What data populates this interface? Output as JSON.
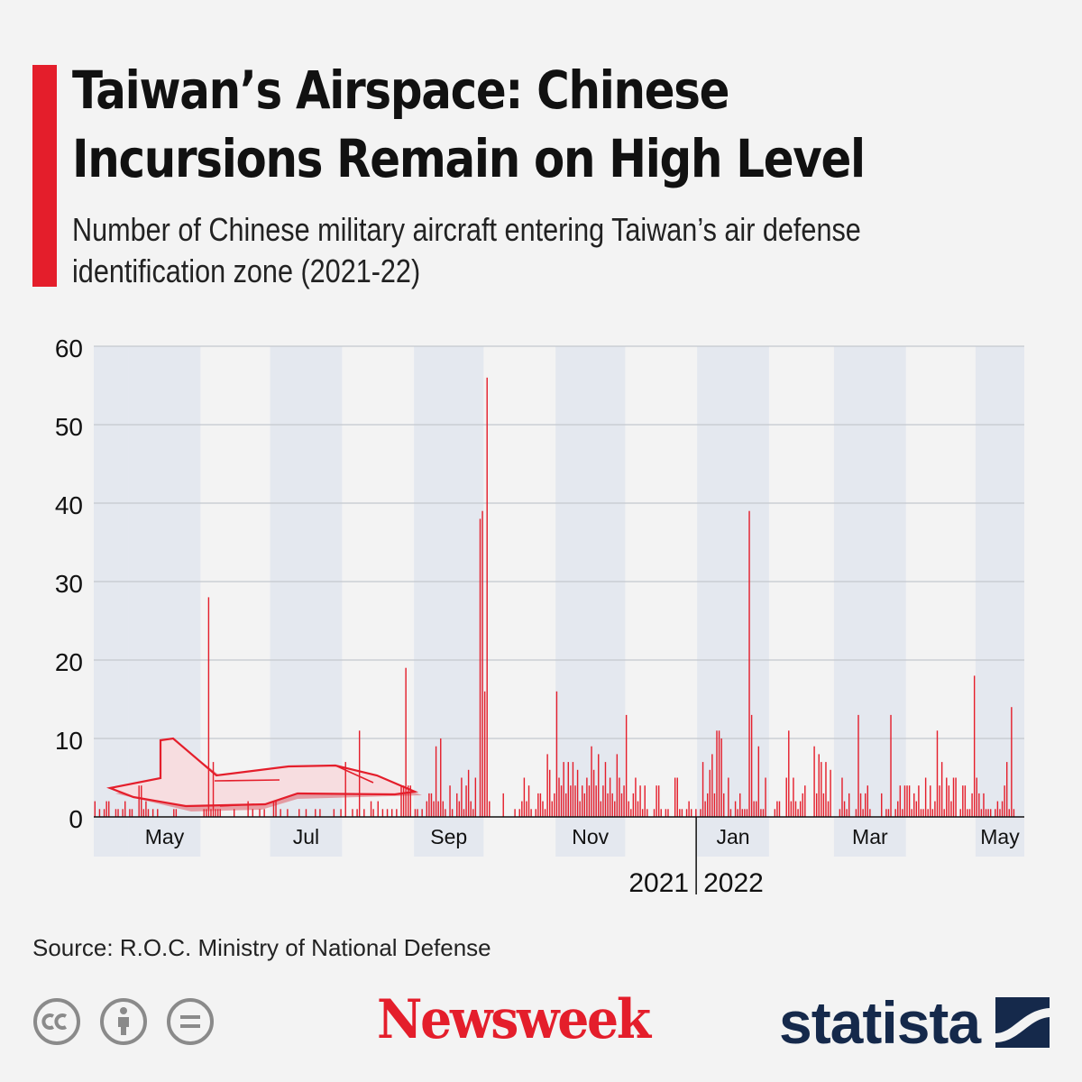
{
  "header": {
    "title": "Taiwan’s Airspace: Chinese Incursions Remain on High Level",
    "subtitle": "Number of Chinese military aircraft entering Taiwan’s air defense identification zone (2021-22)"
  },
  "footer": {
    "source": "Source: R.O.C. Ministry of National Defense",
    "newsweek": "Newsweek",
    "statista": "statista"
  },
  "icons": [
    "creative-commons-icon",
    "attribution-icon",
    "no-derivatives-icon",
    "airplane-icon",
    "statista-mark-icon"
  ],
  "colors": {
    "accent": "#e41e2b",
    "bar": "#e41e2b",
    "brand_newsweek": "#e41e2b",
    "brand_statista": "#15294b"
  },
  "chart_data": {
    "type": "bar",
    "title": "Taiwan’s Airspace: Chinese Incursions Remain on High Level",
    "subtitle": "Number of Chinese military aircraft entering Taiwan’s air defense identification zone (2021-22)",
    "xlabel": "",
    "ylabel": "",
    "ylim": [
      0,
      60
    ],
    "yticks": [
      0,
      10,
      20,
      30,
      40,
      50,
      60
    ],
    "grid": true,
    "xlim": [
      "2021-04-16",
      "2022-05-21"
    ],
    "month_ticks": [
      {
        "label": "May",
        "date": "2021-05-01"
      },
      {
        "label": "Jul",
        "date": "2021-07-01"
      },
      {
        "label": "Sep",
        "date": "2021-09-01"
      },
      {
        "label": "Nov",
        "date": "2021-11-01"
      },
      {
        "label": "Jan",
        "date": "2022-01-01"
      },
      {
        "label": "Mar",
        "date": "2022-03-01"
      },
      {
        "label": "May",
        "date": "2022-05-01"
      }
    ],
    "year_labels": [
      {
        "label": "2021",
        "date": "2021-12-31"
      },
      {
        "label": "2022",
        "date": "2022-01-01"
      }
    ],
    "shaded_months": [
      "2021-04",
      "2021-05",
      "2021-07",
      "2021-09",
      "2021-11",
      "2022-01",
      "2022-03",
      "2022-05"
    ],
    "series": [
      {
        "values": [
          [
            "2021-04-16",
            2
          ],
          [
            "2021-04-18",
            1
          ],
          [
            "2021-04-20",
            1
          ],
          [
            "2021-04-21",
            2
          ],
          [
            "2021-04-22",
            2
          ],
          [
            "2021-04-25",
            1
          ],
          [
            "2021-04-26",
            1
          ],
          [
            "2021-04-28",
            1
          ],
          [
            "2021-04-29",
            2
          ],
          [
            "2021-05-01",
            1
          ],
          [
            "2021-05-02",
            1
          ],
          [
            "2021-05-05",
            4
          ],
          [
            "2021-05-06",
            4
          ],
          [
            "2021-05-07",
            1
          ],
          [
            "2021-05-08",
            2
          ],
          [
            "2021-05-09",
            1
          ],
          [
            "2021-05-11",
            1
          ],
          [
            "2021-05-13",
            1
          ],
          [
            "2021-05-20",
            1
          ],
          [
            "2021-05-21",
            1
          ],
          [
            "2021-06-02",
            1
          ],
          [
            "2021-06-03",
            1
          ],
          [
            "2021-06-04",
            28
          ],
          [
            "2021-06-05",
            1
          ],
          [
            "2021-06-06",
            7
          ],
          [
            "2021-06-07",
            1
          ],
          [
            "2021-06-08",
            1
          ],
          [
            "2021-06-09",
            1
          ],
          [
            "2021-06-15",
            1
          ],
          [
            "2021-06-21",
            2
          ],
          [
            "2021-06-23",
            1
          ],
          [
            "2021-06-26",
            1
          ],
          [
            "2021-06-28",
            1
          ],
          [
            "2021-07-02",
            2
          ],
          [
            "2021-07-03",
            2
          ],
          [
            "2021-07-05",
            1
          ],
          [
            "2021-07-08",
            1
          ],
          [
            "2021-07-13",
            1
          ],
          [
            "2021-07-16",
            1
          ],
          [
            "2021-07-20",
            1
          ],
          [
            "2021-07-22",
            1
          ],
          [
            "2021-07-28",
            1
          ],
          [
            "2021-07-31",
            1
          ],
          [
            "2021-08-02",
            7
          ],
          [
            "2021-08-05",
            1
          ],
          [
            "2021-08-07",
            1
          ],
          [
            "2021-08-08",
            11
          ],
          [
            "2021-08-10",
            1
          ],
          [
            "2021-08-13",
            2
          ],
          [
            "2021-08-14",
            1
          ],
          [
            "2021-08-16",
            2
          ],
          [
            "2021-08-18",
            1
          ],
          [
            "2021-08-20",
            1
          ],
          [
            "2021-08-22",
            1
          ],
          [
            "2021-08-24",
            1
          ],
          [
            "2021-08-26",
            4
          ],
          [
            "2021-08-27",
            4
          ],
          [
            "2021-08-28",
            19
          ],
          [
            "2021-08-29",
            4
          ],
          [
            "2021-08-30",
            4
          ],
          [
            "2021-09-01",
            1
          ],
          [
            "2021-09-02",
            1
          ],
          [
            "2021-09-04",
            1
          ],
          [
            "2021-09-06",
            2
          ],
          [
            "2021-09-07",
            3
          ],
          [
            "2021-09-08",
            3
          ],
          [
            "2021-09-09",
            2
          ],
          [
            "2021-09-10",
            9
          ],
          [
            "2021-09-11",
            2
          ],
          [
            "2021-09-12",
            10
          ],
          [
            "2021-09-13",
            2
          ],
          [
            "2021-09-14",
            1
          ],
          [
            "2021-09-16",
            4
          ],
          [
            "2021-09-17",
            1
          ],
          [
            "2021-09-19",
            3
          ],
          [
            "2021-09-20",
            2
          ],
          [
            "2021-09-21",
            5
          ],
          [
            "2021-09-22",
            1
          ],
          [
            "2021-09-23",
            4
          ],
          [
            "2021-09-24",
            6
          ],
          [
            "2021-09-25",
            2
          ],
          [
            "2021-09-26",
            1
          ],
          [
            "2021-09-27",
            5
          ],
          [
            "2021-09-29",
            38
          ],
          [
            "2021-09-30",
            39
          ],
          [
            "2021-10-01",
            16
          ],
          [
            "2021-10-02",
            56
          ],
          [
            "2021-10-03",
            2
          ],
          [
            "2021-10-09",
            3
          ],
          [
            "2021-10-14",
            1
          ],
          [
            "2021-10-16",
            1
          ],
          [
            "2021-10-17",
            2
          ],
          [
            "2021-10-18",
            5
          ],
          [
            "2021-10-19",
            2
          ],
          [
            "2021-10-20",
            4
          ],
          [
            "2021-10-21",
            1
          ],
          [
            "2021-10-23",
            1
          ],
          [
            "2021-10-24",
            3
          ],
          [
            "2021-10-25",
            3
          ],
          [
            "2021-10-26",
            2
          ],
          [
            "2021-10-27",
            1
          ],
          [
            "2021-10-28",
            8
          ],
          [
            "2021-10-29",
            6
          ],
          [
            "2021-10-30",
            2
          ],
          [
            "2021-10-31",
            3
          ],
          [
            "2021-11-01",
            16
          ],
          [
            "2021-11-02",
            5
          ],
          [
            "2021-11-03",
            4
          ],
          [
            "2021-11-04",
            7
          ],
          [
            "2021-11-05",
            3
          ],
          [
            "2021-11-06",
            7
          ],
          [
            "2021-11-07",
            4
          ],
          [
            "2021-11-08",
            7
          ],
          [
            "2021-11-09",
            4
          ],
          [
            "2021-11-10",
            6
          ],
          [
            "2021-11-11",
            2
          ],
          [
            "2021-11-12",
            4
          ],
          [
            "2021-11-13",
            3
          ],
          [
            "2021-11-14",
            5
          ],
          [
            "2021-11-15",
            4
          ],
          [
            "2021-11-16",
            9
          ],
          [
            "2021-11-17",
            6
          ],
          [
            "2021-11-18",
            4
          ],
          [
            "2021-11-19",
            8
          ],
          [
            "2021-11-20",
            2
          ],
          [
            "2021-11-21",
            4
          ],
          [
            "2021-11-22",
            7
          ],
          [
            "2021-11-23",
            3
          ],
          [
            "2021-11-24",
            5
          ],
          [
            "2021-11-25",
            3
          ],
          [
            "2021-11-26",
            2
          ],
          [
            "2021-11-27",
            8
          ],
          [
            "2021-11-28",
            5
          ],
          [
            "2021-11-29",
            3
          ],
          [
            "2021-11-30",
            4
          ],
          [
            "2021-12-01",
            13
          ],
          [
            "2021-12-02",
            2
          ],
          [
            "2021-12-03",
            1
          ],
          [
            "2021-12-04",
            3
          ],
          [
            "2021-12-05",
            5
          ],
          [
            "2021-12-06",
            2
          ],
          [
            "2021-12-07",
            4
          ],
          [
            "2021-12-08",
            1
          ],
          [
            "2021-12-09",
            4
          ],
          [
            "2021-12-10",
            1
          ],
          [
            "2021-12-13",
            1
          ],
          [
            "2021-12-14",
            4
          ],
          [
            "2021-12-15",
            4
          ],
          [
            "2021-12-16",
            1
          ],
          [
            "2021-12-18",
            1
          ],
          [
            "2021-12-19",
            1
          ],
          [
            "2021-12-22",
            5
          ],
          [
            "2021-12-23",
            5
          ],
          [
            "2021-12-24",
            1
          ],
          [
            "2021-12-25",
            1
          ],
          [
            "2021-12-27",
            1
          ],
          [
            "2021-12-28",
            2
          ],
          [
            "2021-12-29",
            1
          ],
          [
            "2021-12-31",
            1
          ],
          [
            "2022-01-02",
            1
          ],
          [
            "2022-01-03",
            7
          ],
          [
            "2022-01-04",
            2
          ],
          [
            "2022-01-05",
            3
          ],
          [
            "2022-01-06",
            6
          ],
          [
            "2022-01-07",
            8
          ],
          [
            "2022-01-08",
            3
          ],
          [
            "2022-01-09",
            11
          ],
          [
            "2022-01-10",
            11
          ],
          [
            "2022-01-11",
            10
          ],
          [
            "2022-01-12",
            3
          ],
          [
            "2022-01-14",
            5
          ],
          [
            "2022-01-15",
            1
          ],
          [
            "2022-01-17",
            2
          ],
          [
            "2022-01-18",
            1
          ],
          [
            "2022-01-19",
            3
          ],
          [
            "2022-01-20",
            1
          ],
          [
            "2022-01-21",
            1
          ],
          [
            "2022-01-22",
            1
          ],
          [
            "2022-01-23",
            39
          ],
          [
            "2022-01-24",
            13
          ],
          [
            "2022-01-25",
            2
          ],
          [
            "2022-01-26",
            2
          ],
          [
            "2022-01-27",
            9
          ],
          [
            "2022-01-28",
            1
          ],
          [
            "2022-01-29",
            1
          ],
          [
            "2022-01-30",
            5
          ],
          [
            "2022-02-03",
            1
          ],
          [
            "2022-02-04",
            2
          ],
          [
            "2022-02-05",
            2
          ],
          [
            "2022-02-08",
            5
          ],
          [
            "2022-02-09",
            11
          ],
          [
            "2022-02-10",
            2
          ],
          [
            "2022-02-11",
            5
          ],
          [
            "2022-02-12",
            2
          ],
          [
            "2022-02-13",
            1
          ],
          [
            "2022-02-14",
            2
          ],
          [
            "2022-02-15",
            3
          ],
          [
            "2022-02-16",
            4
          ],
          [
            "2022-02-20",
            9
          ],
          [
            "2022-02-21",
            3
          ],
          [
            "2022-02-22",
            8
          ],
          [
            "2022-02-23",
            7
          ],
          [
            "2022-02-24",
            3
          ],
          [
            "2022-02-25",
            7
          ],
          [
            "2022-02-26",
            2
          ],
          [
            "2022-02-27",
            6
          ],
          [
            "2022-03-03",
            1
          ],
          [
            "2022-03-04",
            5
          ],
          [
            "2022-03-05",
            2
          ],
          [
            "2022-03-06",
            1
          ],
          [
            "2022-03-07",
            3
          ],
          [
            "2022-03-10",
            1
          ],
          [
            "2022-03-11",
            13
          ],
          [
            "2022-03-12",
            3
          ],
          [
            "2022-03-13",
            1
          ],
          [
            "2022-03-14",
            3
          ],
          [
            "2022-03-15",
            4
          ],
          [
            "2022-03-16",
            1
          ],
          [
            "2022-03-21",
            3
          ],
          [
            "2022-03-23",
            1
          ],
          [
            "2022-03-24",
            1
          ],
          [
            "2022-03-25",
            13
          ],
          [
            "2022-03-27",
            1
          ],
          [
            "2022-03-28",
            2
          ],
          [
            "2022-03-29",
            4
          ],
          [
            "2022-03-30",
            1
          ],
          [
            "2022-03-31",
            4
          ],
          [
            "2022-04-01",
            4
          ],
          [
            "2022-04-02",
            4
          ],
          [
            "2022-04-03",
            1
          ],
          [
            "2022-04-04",
            3
          ],
          [
            "2022-04-05",
            2
          ],
          [
            "2022-04-06",
            4
          ],
          [
            "2022-04-07",
            1
          ],
          [
            "2022-04-08",
            1
          ],
          [
            "2022-04-09",
            5
          ],
          [
            "2022-04-10",
            1
          ],
          [
            "2022-04-11",
            4
          ],
          [
            "2022-04-12",
            1
          ],
          [
            "2022-04-13",
            2
          ],
          [
            "2022-04-14",
            11
          ],
          [
            "2022-04-15",
            4
          ],
          [
            "2022-04-16",
            7
          ],
          [
            "2022-04-17",
            1
          ],
          [
            "2022-04-18",
            5
          ],
          [
            "2022-04-19",
            4
          ],
          [
            "2022-04-20",
            2
          ],
          [
            "2022-04-21",
            5
          ],
          [
            "2022-04-22",
            5
          ],
          [
            "2022-04-24",
            1
          ],
          [
            "2022-04-25",
            4
          ],
          [
            "2022-04-26",
            4
          ],
          [
            "2022-04-27",
            1
          ],
          [
            "2022-04-28",
            1
          ],
          [
            "2022-04-29",
            3
          ],
          [
            "2022-04-30",
            18
          ],
          [
            "2022-05-01",
            5
          ],
          [
            "2022-05-02",
            3
          ],
          [
            "2022-05-03",
            1
          ],
          [
            "2022-05-04",
            3
          ],
          [
            "2022-05-05",
            1
          ],
          [
            "2022-05-06",
            1
          ],
          [
            "2022-05-07",
            1
          ],
          [
            "2022-05-09",
            1
          ],
          [
            "2022-05-10",
            2
          ],
          [
            "2022-05-11",
            1
          ],
          [
            "2022-05-12",
            2
          ],
          [
            "2022-05-13",
            4
          ],
          [
            "2022-05-14",
            7
          ],
          [
            "2022-05-15",
            1
          ],
          [
            "2022-05-16",
            14
          ],
          [
            "2022-05-17",
            1
          ]
        ]
      }
    ]
  }
}
